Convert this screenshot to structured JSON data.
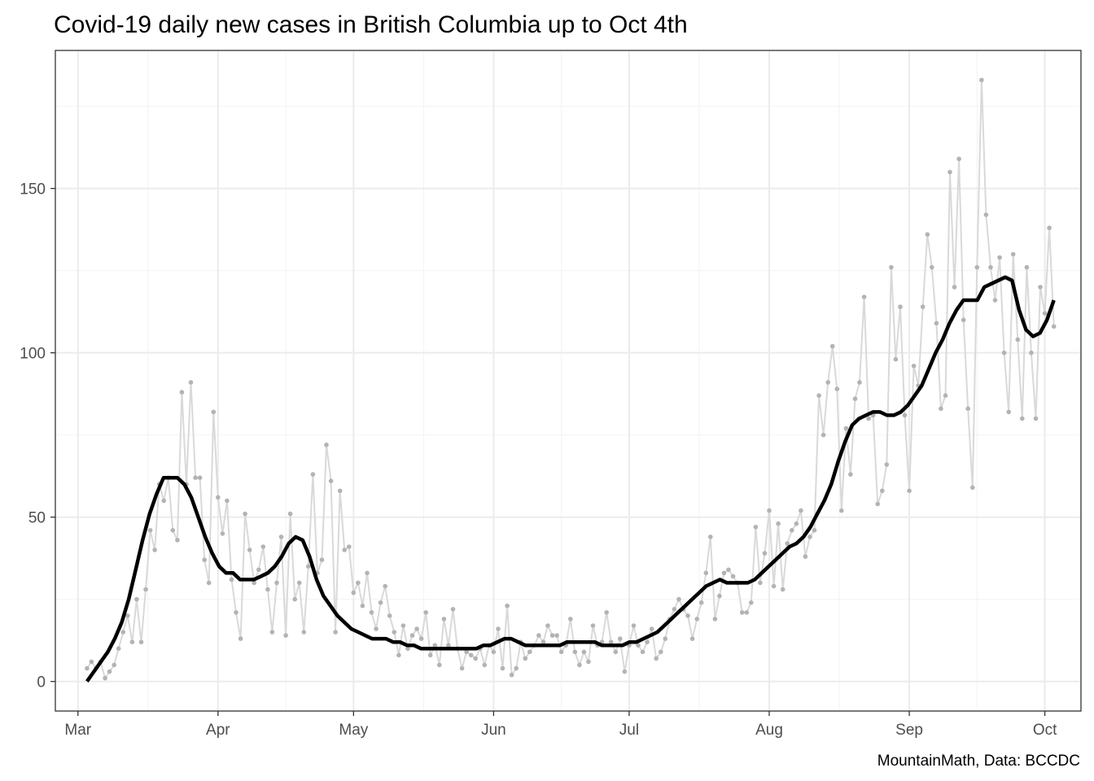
{
  "chart_data": {
    "type": "line",
    "title": "Covid-19 daily new cases in British Columbia up to Oct 4th",
    "caption": "MountainMath, Data: BCCDC",
    "xlabel": "",
    "ylabel": "",
    "x_start": "2020-03-03",
    "x_end": "2020-10-03",
    "xlim": [
      "2020-02-25",
      "2020-10-09"
    ],
    "ylim": [
      -9,
      192
    ],
    "grid": true,
    "legend": "none",
    "x_ticks": [
      {
        "label": "Mar",
        "date": "2020-03-01"
      },
      {
        "label": "Apr",
        "date": "2020-04-01"
      },
      {
        "label": "May",
        "date": "2020-05-01"
      },
      {
        "label": "Jun",
        "date": "2020-06-01"
      },
      {
        "label": "Jul",
        "date": "2020-07-01"
      },
      {
        "label": "Aug",
        "date": "2020-08-01"
      },
      {
        "label": "Sep",
        "date": "2020-09-01"
      },
      {
        "label": "Oct",
        "date": "2020-10-01"
      }
    ],
    "y_ticks": [
      {
        "label": "0",
        "value": 0
      },
      {
        "label": "50",
        "value": 50
      },
      {
        "label": "100",
        "value": 100
      },
      {
        "label": "150",
        "value": 150
      }
    ],
    "colors": {
      "daily_points": "#b3b3b3",
      "daily_line": "#d9d9d9",
      "trend_line": "#000000"
    },
    "series": [
      {
        "values": [
          4,
          6,
          4,
          6,
          1,
          3,
          5,
          10,
          15,
          20,
          12,
          25,
          12,
          28,
          46,
          40,
          60,
          55,
          62,
          46,
          43,
          88,
          60,
          91,
          62,
          62,
          37,
          30,
          82,
          56,
          45,
          55,
          31,
          21,
          13,
          51,
          40,
          30,
          34,
          41,
          28,
          15,
          30,
          44,
          14,
          51,
          25,
          30,
          15,
          35,
          63,
          33,
          37,
          72,
          61,
          15,
          58,
          40,
          41,
          27,
          30,
          23,
          33,
          21,
          16,
          24,
          29,
          20,
          15,
          8,
          17,
          10,
          14,
          16,
          13,
          21,
          8,
          11,
          5,
          19,
          11,
          22,
          10,
          4,
          9,
          8,
          7,
          10,
          5,
          11,
          9,
          16,
          4,
          23,
          2,
          4,
          12,
          7,
          9,
          11,
          14,
          12,
          17,
          14,
          14,
          9,
          11,
          19,
          9,
          5,
          9,
          6,
          17,
          11,
          12,
          21,
          12,
          9,
          13,
          3,
          11,
          17,
          11,
          9,
          12,
          16,
          7,
          9,
          13,
          19,
          22,
          25,
          22,
          20,
          13,
          19,
          24,
          33,
          44,
          19,
          26,
          33,
          34,
          32,
          30,
          21,
          21,
          24,
          47,
          30,
          39,
          52,
          29,
          48,
          28,
          42,
          46,
          48,
          52,
          38,
          44,
          46,
          87,
          75,
          91,
          102,
          89,
          52,
          77,
          63,
          86,
          91,
          117,
          80,
          81,
          54,
          58,
          66,
          126,
          98,
          114,
          81,
          58,
          96,
          90,
          114,
          136,
          126,
          109,
          83,
          87,
          155,
          120,
          159,
          110,
          83,
          59,
          126,
          183,
          142,
          126,
          116,
          129,
          100,
          82,
          130,
          104,
          80,
          126,
          100,
          80,
          120,
          112,
          138,
          108
        ]
      },
      {
        "values": [
          0,
          3,
          6,
          9,
          13,
          18,
          25,
          34,
          43,
          51,
          57,
          62,
          62,
          62,
          60,
          56,
          50,
          44,
          39,
          35,
          33,
          33,
          31,
          31,
          31,
          32,
          33,
          35,
          38,
          42,
          44,
          43,
          38,
          31,
          26,
          23,
          20,
          18,
          16,
          15,
          14,
          13,
          13,
          13,
          12,
          12,
          11,
          11,
          10,
          10,
          10,
          10,
          10,
          10,
          10,
          10,
          10,
          11,
          11,
          12,
          13,
          13,
          12,
          11,
          11,
          11,
          11,
          11,
          11,
          12,
          12,
          12,
          12,
          12,
          11,
          11,
          11,
          11,
          12,
          12,
          13,
          14,
          15,
          17,
          19,
          21,
          23,
          25,
          27,
          29,
          30,
          31,
          30,
          30,
          30,
          30,
          31,
          33,
          35,
          37,
          39,
          41,
          42,
          44,
          47,
          51,
          55,
          60,
          67,
          73,
          78,
          80,
          81,
          82,
          82,
          81,
          81,
          82,
          84,
          87,
          90,
          95,
          100,
          104,
          109,
          113,
          116,
          116,
          116,
          120,
          121,
          122,
          123,
          122,
          113,
          107,
          105,
          106,
          110,
          116
        ]
      }
    ]
  }
}
